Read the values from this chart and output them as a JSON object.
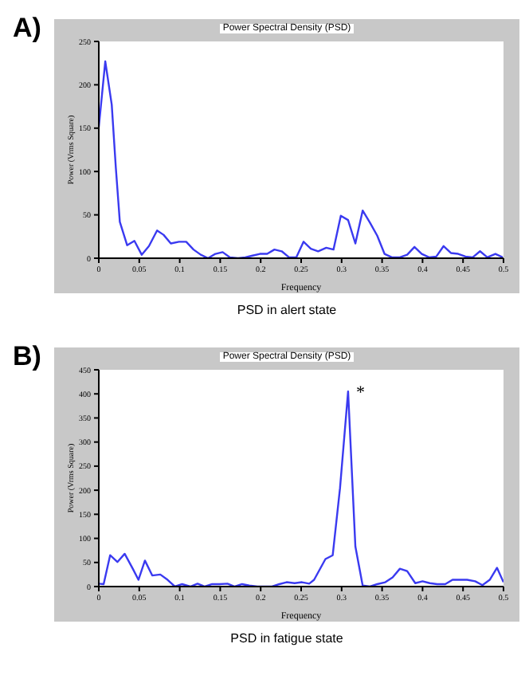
{
  "chart_data": [
    {
      "type": "line",
      "title": "Power Spectral Density (PSD)",
      "xlabel": "Frequency",
      "ylabel": "Power (Vrms Square)",
      "annotations": [
        "A)",
        "PSD in alert state"
      ],
      "xlim": [
        0,
        0.5
      ],
      "xticks": [
        0,
        0.05,
        0.1,
        0.15,
        0.2,
        0.25,
        0.3,
        0.35,
        0.4,
        0.45,
        0.5
      ],
      "ylim": [
        0,
        250
      ],
      "yticks": [
        0,
        50,
        100,
        150,
        200,
        250
      ],
      "grid": false,
      "marker": "none",
      "line_style": "solid",
      "series": [
        {
          "color": "#3a3af0",
          "x": [
            0,
            0.008,
            0.016,
            0.021,
            0.026,
            0.035,
            0.044,
            0.053,
            0.062,
            0.072,
            0.08,
            0.089,
            0.099,
            0.108,
            0.117,
            0.126,
            0.135,
            0.144,
            0.153,
            0.162,
            0.172,
            0.181,
            0.19,
            0.199,
            0.208,
            0.217,
            0.226,
            0.235,
            0.244,
            0.253,
            0.262,
            0.271,
            0.281,
            0.29,
            0.299,
            0.308,
            0.317,
            0.326,
            0.335,
            0.344,
            0.353,
            0.362,
            0.372,
            0.381,
            0.39,
            0.399,
            0.408,
            0.417,
            0.426,
            0.435,
            0.444,
            0.453,
            0.462,
            0.471,
            0.48,
            0.49,
            0.499
          ],
          "values": [
            151,
            227,
            177,
            105,
            42,
            15,
            20,
            4,
            14,
            32,
            27,
            17,
            19,
            19,
            10,
            4,
            0,
            5,
            7,
            1,
            0,
            1,
            3,
            5,
            5,
            10,
            8,
            1,
            1,
            19,
            11,
            8,
            12,
            10,
            49,
            44,
            17,
            55,
            41,
            26,
            5,
            1,
            1,
            4,
            13,
            5,
            1,
            2,
            14,
            6,
            5,
            2,
            1,
            8,
            1,
            5,
            1
          ]
        }
      ]
    },
    {
      "type": "line",
      "title": "Power Spectral Density (PSD)",
      "xlabel": "Frequency",
      "ylabel": "Power (Vrms Square)",
      "annotations": [
        "B)",
        {
          "text": "*",
          "x": 0.308,
          "y": 405
        },
        "PSD in fatigue state"
      ],
      "xlim": [
        0,
        0.5
      ],
      "xticks": [
        0,
        0.05,
        0.1,
        0.15,
        0.2,
        0.25,
        0.3,
        0.35,
        0.4,
        0.45,
        0.5
      ],
      "ylim": [
        0,
        450
      ],
      "yticks": [
        0,
        50,
        100,
        150,
        200,
        250,
        300,
        350,
        400,
        450
      ],
      "grid": false,
      "marker": "none",
      "line_style": "solid",
      "series": [
        {
          "color": "#3a3af0",
          "x": [
            0,
            0.006,
            0.014,
            0.023,
            0.032,
            0.042,
            0.049,
            0.057,
            0.066,
            0.076,
            0.085,
            0.094,
            0.103,
            0.113,
            0.122,
            0.131,
            0.14,
            0.149,
            0.159,
            0.168,
            0.177,
            0.186,
            0.196,
            0.205,
            0.214,
            0.223,
            0.232,
            0.242,
            0.251,
            0.26,
            0.266,
            0.28,
            0.289,
            0.298,
            0.308,
            0.317,
            0.326,
            0.335,
            0.344,
            0.354,
            0.363,
            0.372,
            0.381,
            0.391,
            0.4,
            0.409,
            0.418,
            0.428,
            0.437,
            0.446,
            0.455,
            0.465,
            0.474,
            0.483,
            0.492,
            0.5
          ],
          "values": [
            6,
            5,
            65,
            51,
            68,
            37,
            14,
            54,
            23,
            25,
            14,
            0,
            5,
            0,
            6,
            0,
            5,
            5,
            6,
            0,
            5,
            2,
            0,
            0,
            0,
            5,
            9,
            7,
            9,
            6,
            14,
            57,
            65,
            204,
            405,
            83,
            2,
            0,
            5,
            9,
            19,
            37,
            32,
            7,
            11,
            7,
            5,
            5,
            14,
            14,
            14,
            11,
            3,
            14,
            39,
            9
          ]
        }
      ]
    }
  ]
}
